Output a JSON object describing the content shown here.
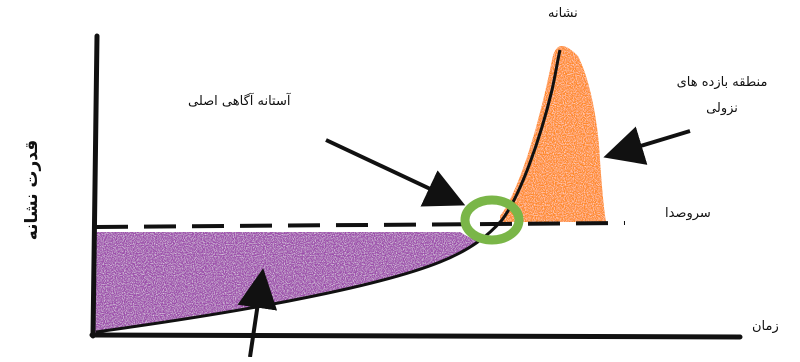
{
  "labels": {
    "signal_axis": "نشانه",
    "threshold": "آستانه آگاهی اصلی",
    "region_line1": "منطقه بازده های",
    "region_line2": "نزولی",
    "noise": "سروصدا",
    "time": "زمان",
    "y_axis": "قدرت نشانه"
  },
  "colors": {
    "purple_fill": "#9c4dab",
    "orange_fill": "#ff8a2a",
    "green_ring": "#7ab648",
    "line": "#111111"
  }
}
